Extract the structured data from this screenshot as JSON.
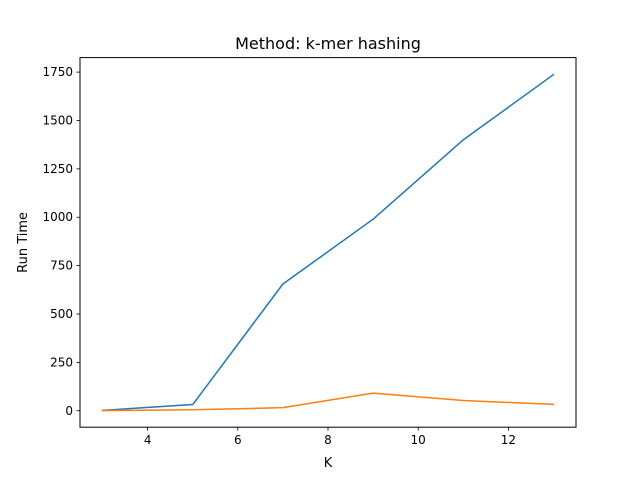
{
  "chart_data": {
    "type": "line",
    "title": "Method: k-mer hashing",
    "xlabel": "K",
    "ylabel": "Run Time",
    "xlim": [
      2.5,
      13.5
    ],
    "ylim": [
      -85,
      1825
    ],
    "xticks": [
      4,
      6,
      8,
      10,
      12
    ],
    "yticks": [
      0,
      250,
      500,
      750,
      1000,
      1250,
      1500,
      1750
    ],
    "grid": false,
    "series": [
      {
        "color": "#1f77b4",
        "x": [
          3,
          5,
          7,
          9,
          11,
          13
        ],
        "y": [
          2,
          32,
          655,
          990,
          1400,
          1737
        ]
      },
      {
        "color": "#ff7f0e",
        "x": [
          3,
          5,
          7,
          9,
          11,
          13
        ],
        "y": [
          1,
          5,
          16,
          91,
          53,
          33
        ]
      }
    ]
  }
}
